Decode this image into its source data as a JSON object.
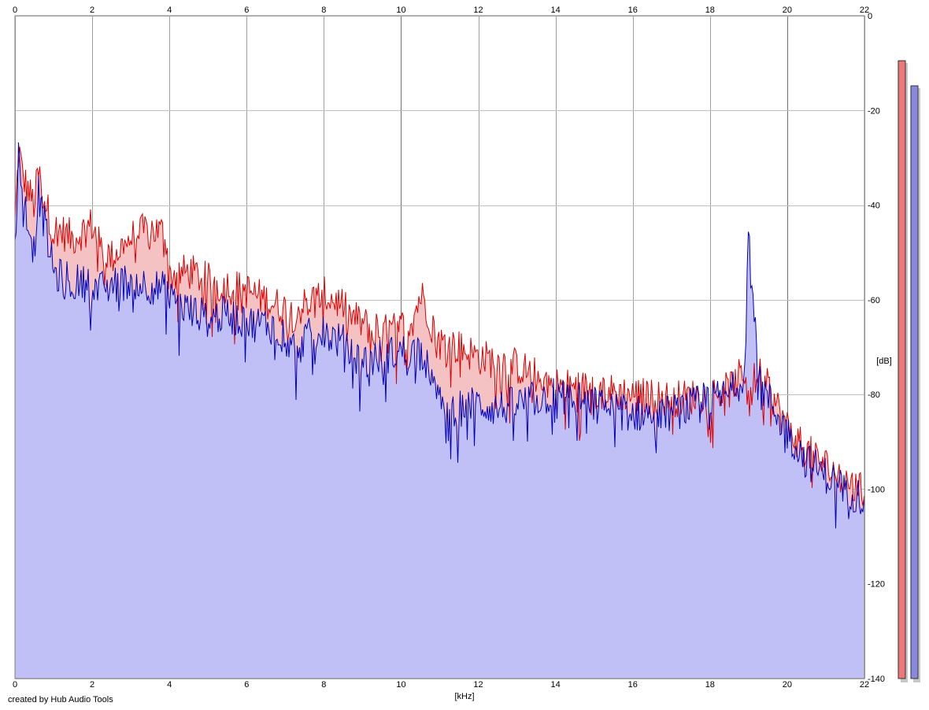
{
  "credit": "created by Hub Audio Tools",
  "chart_data": {
    "type": "area",
    "xlabel": "[kHz]",
    "ylabel": "[dB]",
    "x_ticks": [
      "0",
      "2",
      "4",
      "6",
      "8",
      "10",
      "12",
      "14",
      "16",
      "18",
      "20",
      "22"
    ],
    "y_ticks": [
      "0",
      "-20",
      "-40",
      "-60",
      "-80",
      "-100",
      "-120",
      "-140"
    ],
    "xlim": [
      0,
      22
    ],
    "ylim": [
      -140,
      0
    ],
    "grid": true,
    "colors": {
      "red_line": "#dd0000",
      "red_fill": "#f4c2c2",
      "blue_line": "#0000bb",
      "blue_fill": "#c0c0f6"
    },
    "series": [
      {
        "channel": "red",
        "x": [
          0,
          0.1,
          0.2,
          0.5,
          0.6,
          1.0,
          1.1,
          1.5,
          2.0,
          2.2,
          2.5,
          3.0,
          3.5,
          3.9,
          4.0,
          4.5,
          5.0,
          5.5,
          6.0,
          6.5,
          7.0,
          7.2,
          7.5,
          8.0,
          8.5,
          8.6,
          9.0,
          9.5,
          10.0,
          10.3,
          10.5,
          10.6,
          10.8,
          11.0,
          11.5,
          12.0,
          12.5,
          13.0,
          13.5,
          14.0,
          15.0,
          16.0,
          17.0,
          18.0,
          18.5,
          18.8,
          18.9,
          19.0,
          19.3,
          19.6,
          20.0,
          20.5,
          21.0,
          21.5,
          22.0
        ],
        "values": [
          -44,
          -28,
          -34,
          -40,
          -33,
          -46,
          -45,
          -47,
          -44,
          -49,
          -51,
          -47,
          -45,
          -46,
          -55,
          -54,
          -56,
          -57,
          -58,
          -60,
          -62,
          -63,
          -61,
          -59,
          -61,
          -63,
          -65,
          -67,
          -66,
          -64,
          -59,
          -60,
          -65,
          -69,
          -70,
          -72,
          -73,
          -74,
          -76,
          -78,
          -79,
          -80,
          -81,
          -80,
          -79,
          -76,
          -75,
          -78,
          -76,
          -80,
          -87,
          -92,
          -95,
          -98,
          -101
        ]
      },
      {
        "channel": "blue",
        "x": [
          0,
          0.1,
          0.2,
          0.5,
          0.6,
          1.0,
          1.1,
          1.5,
          2.0,
          2.2,
          2.5,
          3.0,
          3.5,
          3.9,
          4.0,
          4.5,
          5.0,
          5.5,
          6.0,
          6.5,
          7.0,
          7.2,
          7.5,
          8.0,
          8.5,
          8.6,
          9.0,
          9.5,
          10.0,
          10.3,
          10.5,
          10.6,
          10.8,
          11.0,
          11.5,
          12.0,
          12.5,
          13.0,
          13.5,
          14.0,
          15.0,
          16.0,
          17.0,
          18.0,
          18.5,
          18.8,
          18.9,
          19.0,
          19.3,
          19.6,
          20.0,
          20.5,
          21.0,
          21.5,
          22.0
        ],
        "values": [
          -46,
          -28,
          -37,
          -50,
          -37,
          -54,
          -55,
          -56,
          -57,
          -58,
          -57,
          -56,
          -57,
          -58,
          -60,
          -62,
          -64,
          -63,
          -65,
          -65,
          -67,
          -70,
          -68,
          -67,
          -69,
          -71,
          -73,
          -72,
          -71,
          -71,
          -70,
          -72,
          -78,
          -82,
          -83,
          -82,
          -83,
          -82,
          -81,
          -80,
          -82,
          -84,
          -84,
          -81,
          -80,
          -77,
          -74,
          -44,
          -78,
          -82,
          -88,
          -94,
          -97,
          -100,
          -102
        ]
      }
    ],
    "level_meters": [
      {
        "channel": "red",
        "value_db": -9.5
      },
      {
        "channel": "blue",
        "value_db": -14.8
      }
    ]
  }
}
